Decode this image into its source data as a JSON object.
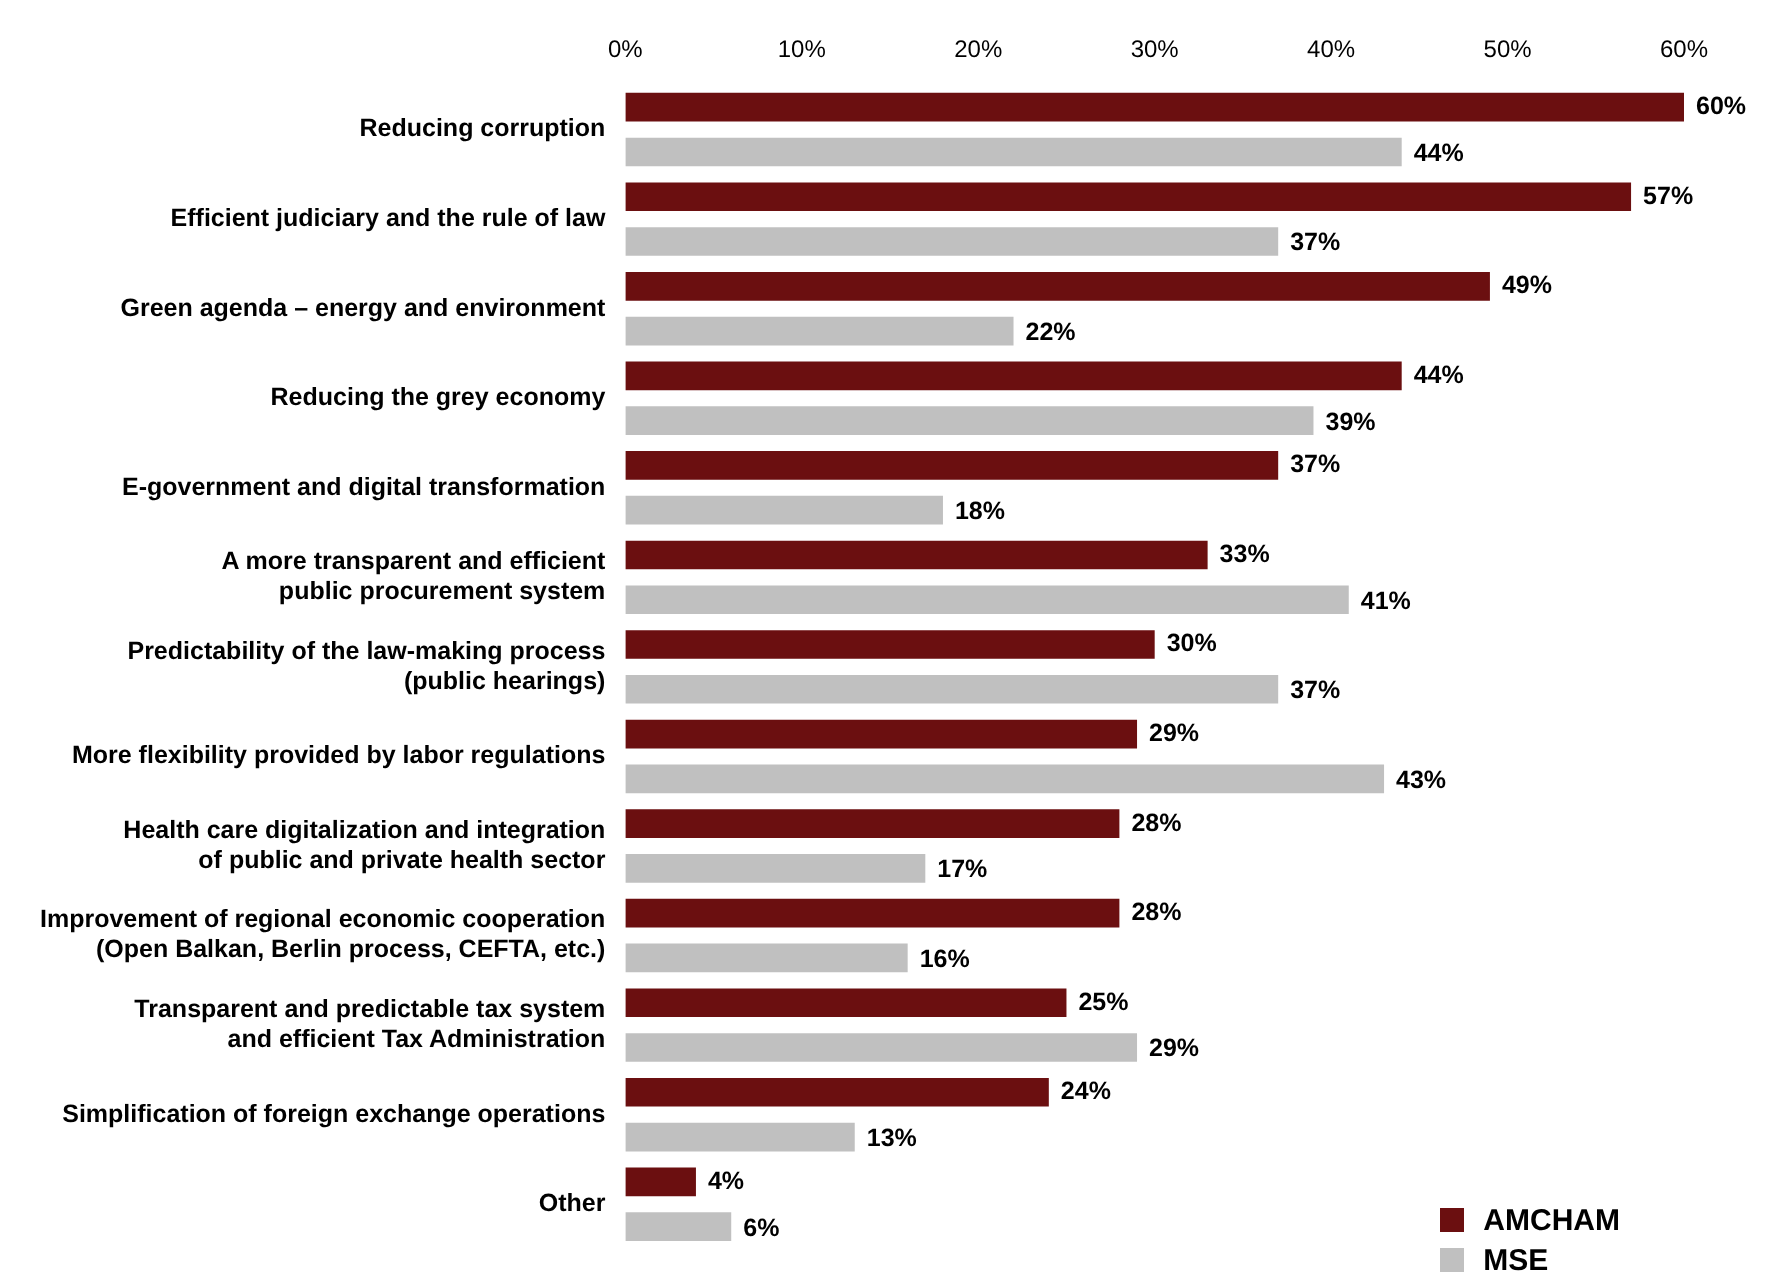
{
  "chart_data": {
    "type": "bar",
    "orientation": "horizontal",
    "categories": [
      "Reducing corruption",
      "Efficient judiciary and the rule of law",
      "Green agenda – energy and environment",
      "Reducing the grey economy",
      "E-government and digital transformation",
      "A more transparent and efficient\npublic procurement system",
      "Predictability of the law-making process\n(public hearings)",
      "More flexibility provided by labor regulations",
      "Health care digitalization and integration\nof public and private health sector",
      "Improvement of regional economic cooperation\n(Open Balkan, Berlin process, CEFTA, etc.)",
      "Transparent and predictable tax system\nand efficient Tax Administration",
      "Simplification of foreign exchange operations",
      "Other"
    ],
    "series": [
      {
        "name": "AMCHAM",
        "color": "#6b0f10",
        "values": [
          60,
          57,
          49,
          44,
          37,
          33,
          30,
          29,
          28,
          28,
          25,
          24,
          4
        ],
        "value_labels": [
          "60%",
          "57%",
          "49%",
          "44%",
          "37%",
          "33%",
          "30%",
          "29%",
          "28%",
          "28%",
          "25%",
          "24%",
          "4%"
        ]
      },
      {
        "name": "MSE",
        "color": "#c0c0c0",
        "values": [
          44,
          37,
          22,
          39,
          18,
          41,
          37,
          43,
          17,
          16,
          29,
          13,
          6
        ],
        "value_labels": [
          "44%",
          "37%",
          "22%",
          "39%",
          "18%",
          "41%",
          "37%",
          "43%",
          "17%",
          "16%",
          "29%",
          "13%",
          "6%"
        ]
      }
    ],
    "xlim": [
      0,
      60
    ],
    "xticks": [
      {
        "value": 0,
        "label": "0%"
      },
      {
        "value": 10,
        "label": "10%"
      },
      {
        "value": 20,
        "label": "20%"
      },
      {
        "value": 30,
        "label": "30%"
      },
      {
        "value": 40,
        "label": "40%"
      },
      {
        "value": 50,
        "label": "50%"
      },
      {
        "value": 60,
        "label": "60%"
      }
    ],
    "grid": false,
    "legend": "bottom right"
  }
}
